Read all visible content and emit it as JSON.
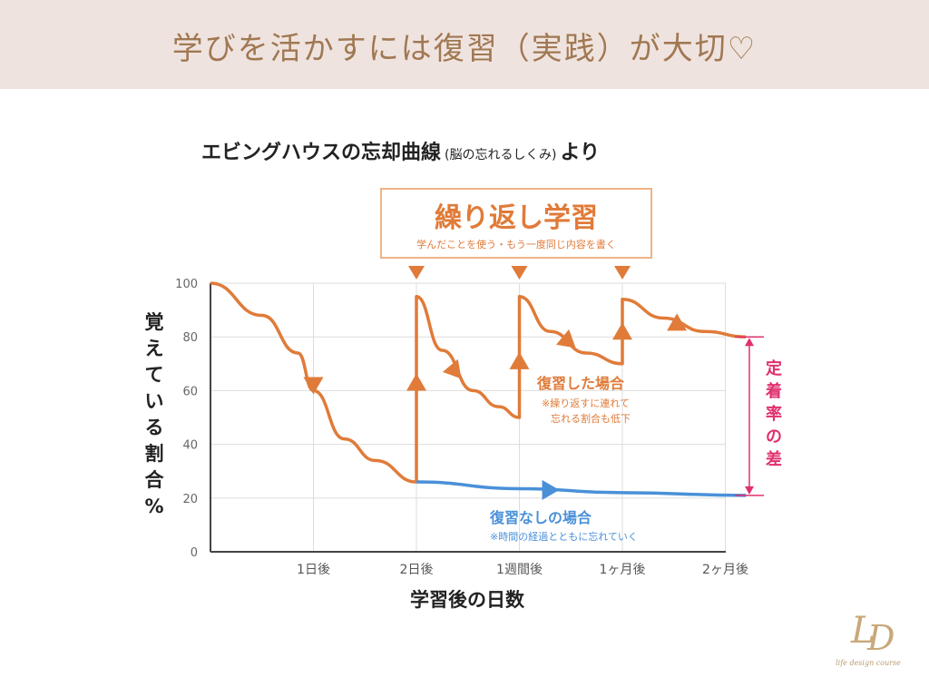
{
  "header": {
    "title": "学びを活かすには復習（実践）が大切♡"
  },
  "chart_data": {
    "type": "line",
    "title": "エビングハウスの忘却曲線",
    "title_note": "(脳の忘れるしくみ)",
    "title_suffix": "より",
    "xlabel": "学習後の日数",
    "ylabel": "覚えている割合%",
    "ylim": [
      0,
      100
    ],
    "yticks": [
      0,
      20,
      40,
      60,
      80,
      100
    ],
    "xtick_labels": [
      "1日後",
      "2日後",
      "1週間後",
      "1ヶ月後",
      "2ヶ月後"
    ],
    "grid": true,
    "series": [
      {
        "name": "復習した場合",
        "color": "#e07b39",
        "points": [
          [
            0,
            100
          ],
          [
            0.5,
            88
          ],
          [
            0.85,
            74
          ],
          [
            1.0,
            60
          ],
          [
            1.3,
            42
          ],
          [
            1.6,
            34
          ],
          [
            2.0,
            26
          ],
          [
            2.0,
            95
          ],
          [
            2.25,
            75
          ],
          [
            2.55,
            60
          ],
          [
            2.8,
            54
          ],
          [
            3.0,
            50
          ],
          [
            3.0,
            95
          ],
          [
            3.3,
            82
          ],
          [
            3.65,
            74
          ],
          [
            4.0,
            70
          ],
          [
            4.0,
            94
          ],
          [
            4.4,
            87
          ],
          [
            4.8,
            82
          ],
          [
            5.2,
            80
          ]
        ]
      },
      {
        "name": "復習なしの場合",
        "color": "#4a90d9",
        "points": [
          [
            2.0,
            26
          ],
          [
            3.0,
            23.5
          ],
          [
            4.0,
            22
          ],
          [
            5.2,
            21
          ]
        ]
      }
    ],
    "annotations": {
      "review_box_title": "繰り返し学習",
      "review_box_sub": "学んだことを使う・もう一度同じ内容を書く",
      "with_review_label": "復習した場合",
      "with_review_note1": "※繰り返すに連れて",
      "with_review_note2": "忘れる割合も低下",
      "without_review_label": "復習なしの場合",
      "without_review_note": "※時間の経過とともに忘れていく",
      "retention_gap_label": "定着率の差",
      "gap_color": "#e0306e"
    }
  },
  "logo": {
    "mark": "LD",
    "tagline": "life design course"
  }
}
